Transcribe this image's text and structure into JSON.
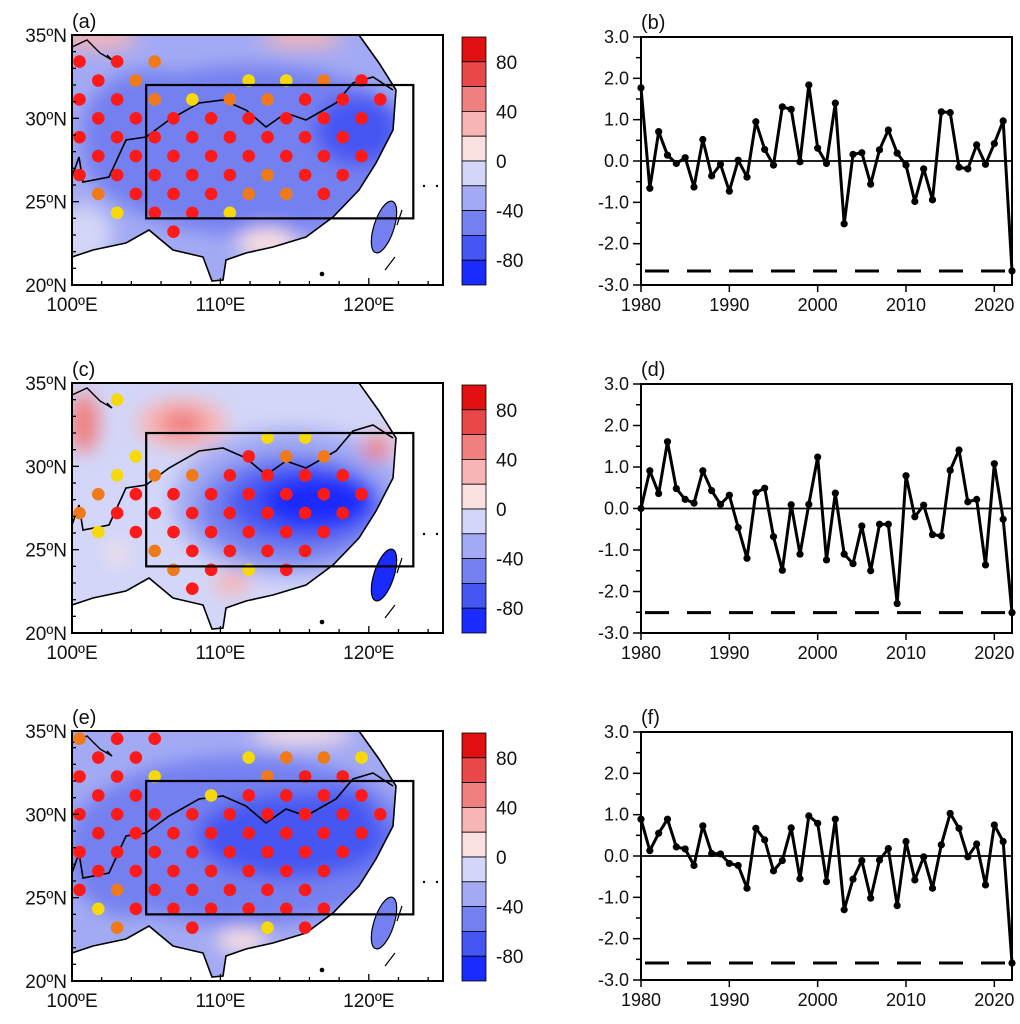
{
  "colors": {
    "levels": [
      "#e01010",
      "#e84848",
      "#f08080",
      "#f7b5b5",
      "#fbe0e0",
      "#d3d6f8",
      "#a3aaf3",
      "#7480f0",
      "#4656f2",
      "#1a2bff"
    ],
    "dot_colors": {
      "r": "#ff1a1a",
      "o": "#f07a1a",
      "y": "#f5d90a"
    },
    "line": "#000000"
  },
  "map_axes": {
    "lat_labels": [
      "35ºN",
      "30ºN",
      "25ºN",
      "20ºN"
    ],
    "lon_labels": [
      "100ºE",
      "110ºE",
      "120ºE"
    ]
  },
  "colorbar": {
    "labels": [
      "80",
      "40",
      "0",
      "-40",
      "-80"
    ],
    "range": [
      -100,
      100
    ],
    "step": 20
  },
  "maps": [
    {
      "label": "(a)",
      "dots": [
        ".................",
        "r.r.o............",
        ".r.o.....y.y.o.r.",
        "r.r.o.y.o.o.r.r.r",
        ".r.r.r.r.r.r.r.r.",
        "r.r.r.r.r.r.r.r..",
        ".r.r.r.r.r.r.r.r.",
        "r.r.r.r.r.o.r.r..",
        ".o.r.r.r.o.o.r...",
        "..y.r.r.y........",
        ".....r..........."
      ]
    },
    {
      "label": "(c)",
      "dots": [
        "..y..............",
        ".................",
        "..........y.y....",
        "...y.....r.o.o...",
        "..y.o.o.r.r.r.r..",
        ".o.r.r.r.r.r.r.r.",
        "o.r.r.r.r.r.r.r..",
        ".y.r.r.r.r.r.r...",
        "....o.r.r.r.r....",
        ".....o.r.y.r.....",
        "......r.........."
      ]
    },
    {
      "label": "(e)",
      "dots": [
        "o.r.r............",
        ".r.r.....y.o.o.y.",
        "r.r.y.....o.r.r..",
        ".r.r...y.r.r.r.r.",
        "r.r.r.r.r.r.r.r.r",
        ".r.r.r.r.r.r.r.r.",
        "r.r.r.r.r.r.r.r..",
        ".r.r.r.r.r.r.r...",
        "r.o.r.r.r.r.r....",
        ".y.r.r.r.r.r.r...",
        "..o...r...y.r...."
      ]
    }
  ],
  "chart_data": [
    {
      "type": "line",
      "label": "(b)",
      "x": [
        1980,
        1981,
        1982,
        1983,
        1984,
        1985,
        1986,
        1987,
        1988,
        1989,
        1990,
        1991,
        1992,
        1993,
        1994,
        1995,
        1996,
        1997,
        1998,
        1999,
        2000,
        2001,
        2002,
        2003,
        2004,
        2005,
        2006,
        2007,
        2008,
        2009,
        2010,
        2011,
        2012,
        2013,
        2014,
        2015,
        2016,
        2017,
        2018,
        2019,
        2020,
        2021,
        2022
      ],
      "values": [
        1.77,
        -0.66,
        0.71,
        0.14,
        -0.06,
        0.08,
        -0.63,
        0.52,
        -0.36,
        -0.08,
        -0.73,
        0.02,
        -0.39,
        0.95,
        0.28,
        -0.1,
        1.31,
        1.25,
        -0.02,
        1.84,
        0.31,
        -0.06,
        1.4,
        -1.52,
        0.16,
        0.2,
        -0.56,
        0.27,
        0.75,
        0.19,
        -0.1,
        -0.98,
        -0.19,
        -0.94,
        1.19,
        1.17,
        -0.15,
        -0.19,
        0.39,
        -0.08,
        0.42,
        0.97,
        -2.66
      ],
      "reference_line": -2.66,
      "xlim": [
        1980,
        2022
      ],
      "ylim": [
        -3.0,
        3.0
      ],
      "xticks": [
        "1980",
        "1990",
        "2000",
        "2010",
        "2020"
      ],
      "yticks": [
        "3.0",
        "2.0",
        "1.0",
        "0.0",
        "-1.0",
        "-2.0",
        "-3.0"
      ]
    },
    {
      "type": "line",
      "label": "(d)",
      "x": [
        1980,
        1981,
        1982,
        1983,
        1984,
        1985,
        1986,
        1987,
        1988,
        1989,
        1990,
        1991,
        1992,
        1993,
        1994,
        1995,
        1996,
        1997,
        1998,
        1999,
        2000,
        2001,
        2002,
        2003,
        2004,
        2005,
        2006,
        2007,
        2008,
        2009,
        2010,
        2011,
        2012,
        2013,
        2014,
        2015,
        2016,
        2017,
        2018,
        2019,
        2020,
        2021,
        2022
      ],
      "values": [
        0.0,
        0.91,
        0.36,
        1.61,
        0.48,
        0.22,
        0.13,
        0.91,
        0.43,
        0.1,
        0.32,
        -0.46,
        -1.2,
        0.38,
        0.49,
        -0.68,
        -1.49,
        0.09,
        -1.1,
        0.1,
        1.24,
        -1.24,
        0.37,
        -1.1,
        -1.33,
        -0.42,
        -1.5,
        -0.38,
        -0.38,
        -2.29,
        0.79,
        -0.2,
        0.08,
        -0.63,
        -0.66,
        0.92,
        1.41,
        0.16,
        0.22,
        -1.36,
        1.08,
        -0.26,
        -2.51
      ],
      "reference_line": -2.51,
      "xlim": [
        1980,
        2022
      ],
      "ylim": [
        -3.0,
        3.0
      ],
      "xticks": [
        "1980",
        "1990",
        "2000",
        "2010",
        "2020"
      ],
      "yticks": [
        "3.0",
        "2.0",
        "1.0",
        "0.0",
        "-1.0",
        "-2.0",
        "-3.0"
      ]
    },
    {
      "type": "line",
      "label": "(f)",
      "x": [
        1980,
        1981,
        1982,
        1983,
        1984,
        1985,
        1986,
        1987,
        1988,
        1989,
        1990,
        1991,
        1992,
        1993,
        1994,
        1995,
        1996,
        1997,
        1998,
        1999,
        2000,
        2001,
        2002,
        2003,
        2004,
        2005,
        2006,
        2007,
        2008,
        2009,
        2010,
        2011,
        2012,
        2013,
        2014,
        2015,
        2016,
        2017,
        2018,
        2019,
        2020,
        2021,
        2022
      ],
      "values": [
        0.89,
        0.13,
        0.55,
        0.89,
        0.22,
        0.17,
        -0.23,
        0.73,
        0.06,
        0.05,
        -0.18,
        -0.23,
        -0.78,
        0.67,
        0.39,
        -0.36,
        -0.11,
        0.68,
        -0.55,
        0.97,
        0.79,
        -0.62,
        0.89,
        -1.3,
        -0.56,
        -0.11,
        -1.02,
        -0.1,
        0.18,
        -1.2,
        0.35,
        -0.58,
        -0.02,
        -0.78,
        0.27,
        1.03,
        0.67,
        -0.02,
        0.29,
        -0.7,
        0.75,
        0.35,
        -2.59
      ],
      "reference_line": -2.59,
      "xlim": [
        1980,
        2022
      ],
      "ylim": [
        -3.0,
        3.0
      ],
      "xticks": [
        "1980",
        "1990",
        "2000",
        "2010",
        "2020"
      ],
      "yticks": [
        "3.0",
        "2.0",
        "1.0",
        "0.0",
        "-1.0",
        "-2.0",
        "-3.0"
      ]
    }
  ]
}
